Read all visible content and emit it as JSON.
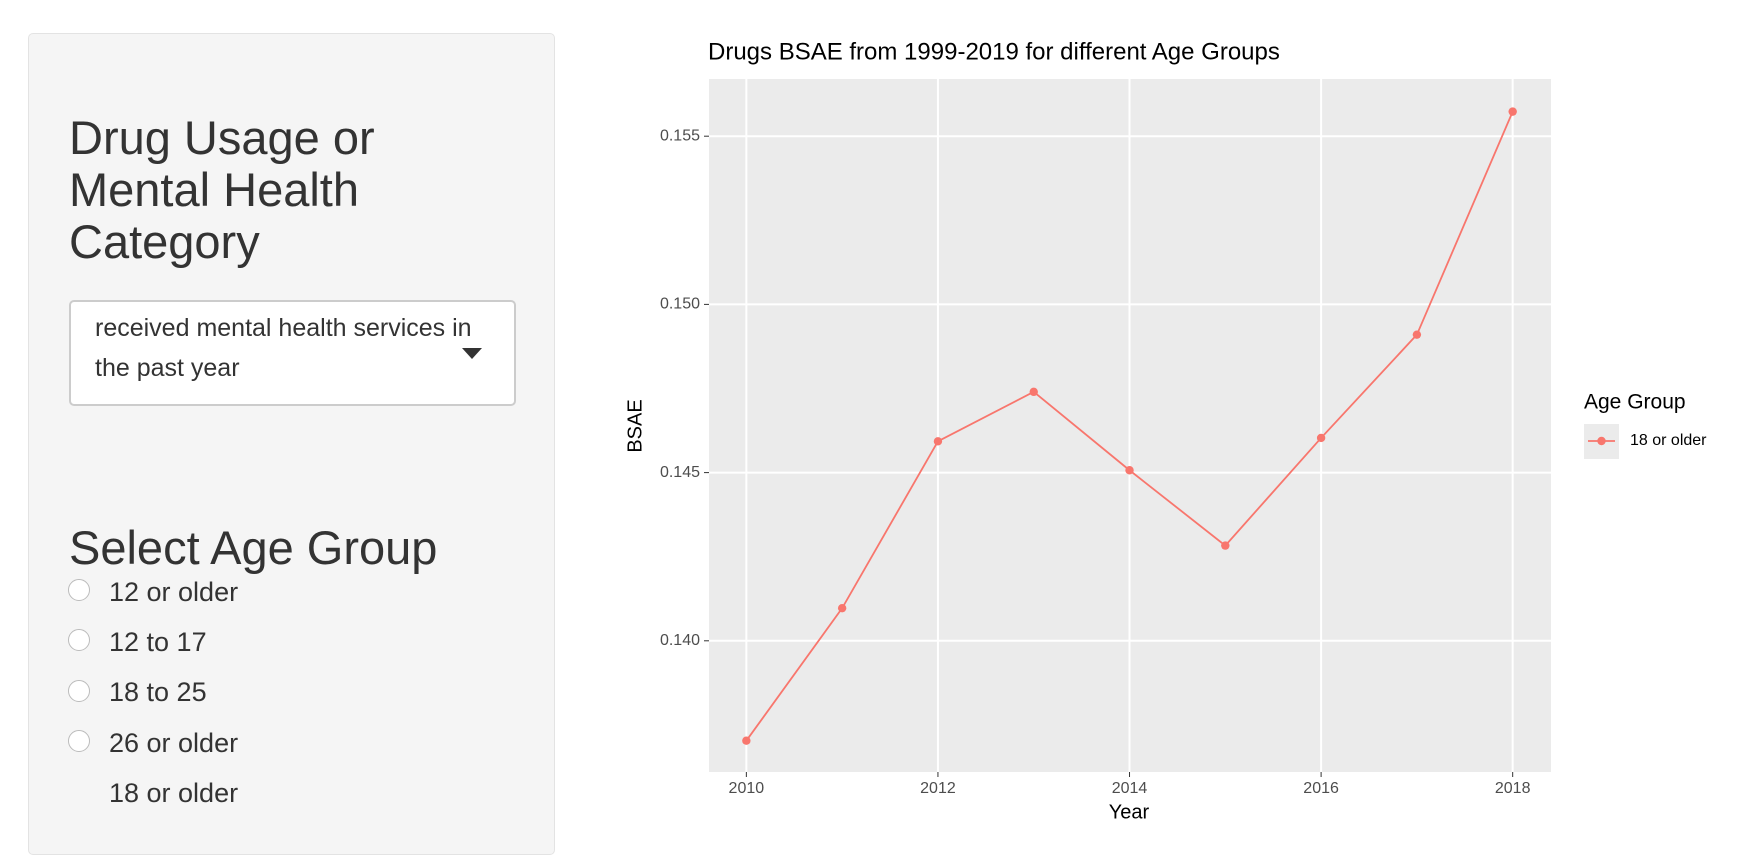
{
  "sidebar": {
    "category_heading": "Drug Usage or Mental Health Category",
    "selected_category": "received mental health services in the past year",
    "age_heading": "Select Age Group",
    "age_options": [
      "12 or older",
      "12 to 17",
      "18 to 25",
      "26 or older",
      "18 or older"
    ]
  },
  "chart_data": {
    "type": "line",
    "title": "Drugs BSAE from 1999-2019 for different Age Groups",
    "x_label": "Year",
    "y_label": "BSAE",
    "legend_title": "Age Group",
    "x": [
      2010,
      2011,
      2012,
      2013,
      2014,
      2015,
      2016,
      2017,
      2018
    ],
    "series": [
      {
        "name": "18 or older",
        "color": "#f8766d",
        "values": [
          0.13703,
          0.14097,
          0.14593,
          0.1474,
          0.14507,
          0.14283,
          0.14603,
          0.1491,
          0.15573
        ]
      }
    ],
    "xlim": [
      2009.61,
      2018.4
    ],
    "xticks": [
      2010,
      2012,
      2014,
      2016,
      2018
    ],
    "ylim": [
      0.1361,
      0.1567
    ],
    "yticks": [
      {
        "value": 0.14,
        "label": "0.140"
      },
      {
        "value": 0.145,
        "label": "0.145"
      },
      {
        "value": 0.15,
        "label": "0.150"
      },
      {
        "value": 0.155,
        "label": "0.155"
      }
    ],
    "grid": true
  }
}
